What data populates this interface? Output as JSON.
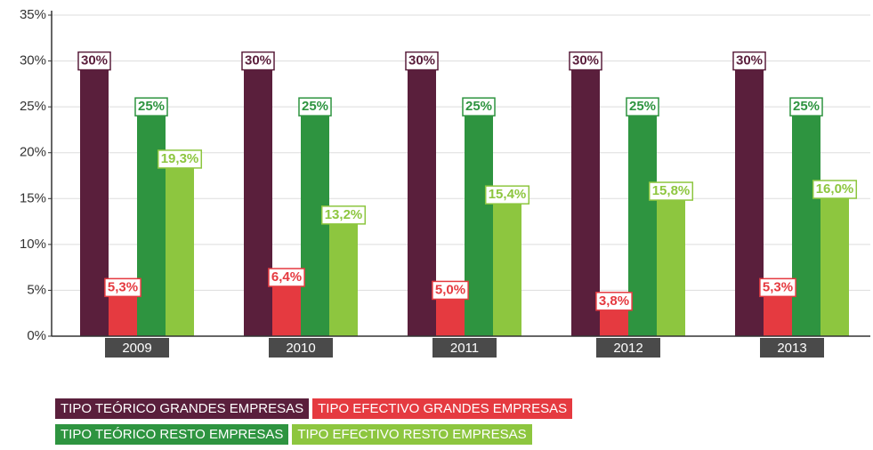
{
  "chart_data": {
    "type": "bar",
    "categories": [
      "2009",
      "2010",
      "2011",
      "2012",
      "2013"
    ],
    "series": [
      {
        "name": "TIPO TEÓRICO GRANDES EMPRESAS",
        "color": "#5a1f3c",
        "values": [
          30,
          30,
          30,
          30,
          30
        ],
        "value_labels": [
          "30%",
          "30%",
          "30%",
          "30%",
          "30%"
        ]
      },
      {
        "name": "TIPO EFECTIVO GRANDES EMPRESAS",
        "color": "#e53a40",
        "values": [
          5.3,
          6.4,
          5.0,
          3.8,
          5.3
        ],
        "value_labels": [
          "5,3%",
          "6,4%",
          "5,0%",
          "3,8%",
          "5,3%"
        ]
      },
      {
        "name": "TIPO TEÓRICO RESTO EMPRESAS",
        "color": "#2e9440",
        "values": [
          25,
          25,
          25,
          25,
          25
        ],
        "value_labels": [
          "25%",
          "25%",
          "25%",
          "25%",
          "25%"
        ]
      },
      {
        "name": "TIPO EFECTIVO RESTO EMPRESAS",
        "color": "#8dc63f",
        "values": [
          19.3,
          13.2,
          15.4,
          15.8,
          16.0
        ],
        "value_labels": [
          "19,3%",
          "13,2%",
          "15,4%",
          "15,8%",
          "16,0%"
        ]
      }
    ],
    "ylim": [
      0,
      35
    ],
    "yticks": [
      {
        "value": 0,
        "label": "0%"
      },
      {
        "value": 5,
        "label": "5%"
      },
      {
        "value": 10,
        "label": "10%"
      },
      {
        "value": 15,
        "label": "15%"
      },
      {
        "value": 20,
        "label": "20%"
      },
      {
        "value": 25,
        "label": "25%"
      },
      {
        "value": 30,
        "label": "30%"
      },
      {
        "value": 35,
        "label": "35%"
      }
    ],
    "grid": true
  }
}
